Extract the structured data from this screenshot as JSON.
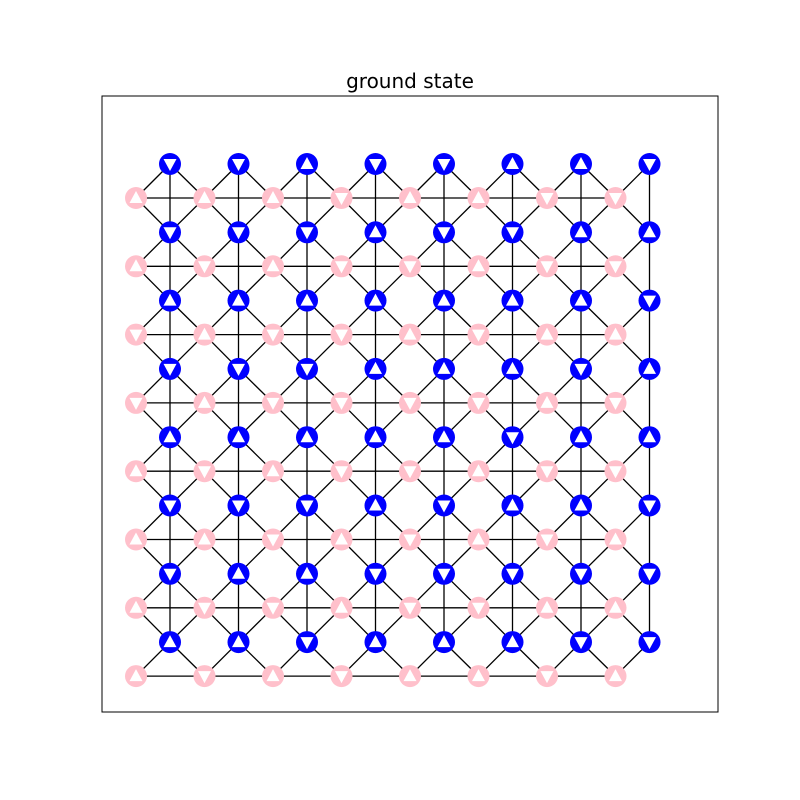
{
  "title": "ground state",
  "colors": {
    "sublattice_a": "#0000ff",
    "sublattice_b": "#ffc0cb",
    "edge": "#000000",
    "arrow": "#ffffff"
  },
  "lattice": {
    "rows": 8,
    "cols": 8,
    "sublattice_a_name": "blue",
    "sublattice_b_name": "pink",
    "spins_a": [
      [
        "down",
        "down",
        "up",
        "down",
        "down",
        "up",
        "up",
        "down"
      ],
      [
        "down",
        "down",
        "down",
        "up",
        "down",
        "down",
        "up",
        "up"
      ],
      [
        "up",
        "up",
        "up",
        "up",
        "up",
        "up",
        "up",
        "down"
      ],
      [
        "down",
        "down",
        "down",
        "up",
        "up",
        "up",
        "down",
        "up"
      ],
      [
        "up",
        "up",
        "up",
        "up",
        "up",
        "down",
        "up",
        "up"
      ],
      [
        "down",
        "down",
        "down",
        "up",
        "down",
        "up",
        "up",
        "down"
      ],
      [
        "down",
        "up",
        "up",
        "down",
        "down",
        "down",
        "down",
        "down"
      ],
      [
        "up",
        "up",
        "down",
        "up",
        "up",
        "up",
        "down",
        "down"
      ]
    ],
    "spins_b": [
      [
        "up",
        "up",
        "up",
        "down",
        "up",
        "up",
        "down",
        "down"
      ],
      [
        "up",
        "down",
        "up",
        "down",
        "down",
        "up",
        "down",
        "down"
      ],
      [
        "down",
        "up",
        "down",
        "down",
        "up",
        "down",
        "up",
        "up"
      ],
      [
        "down",
        "up",
        "down",
        "down",
        "down",
        "down",
        "up",
        "down"
      ],
      [
        "up",
        "down",
        "up",
        "down",
        "down",
        "up",
        "down",
        "down"
      ],
      [
        "up",
        "up",
        "down",
        "up",
        "down",
        "up",
        "down",
        "up"
      ],
      [
        "up",
        "down",
        "down",
        "up",
        "down",
        "down",
        "up",
        "up"
      ],
      [
        "up",
        "down",
        "up",
        "down",
        "up",
        "up",
        "down",
        "up"
      ]
    ]
  }
}
